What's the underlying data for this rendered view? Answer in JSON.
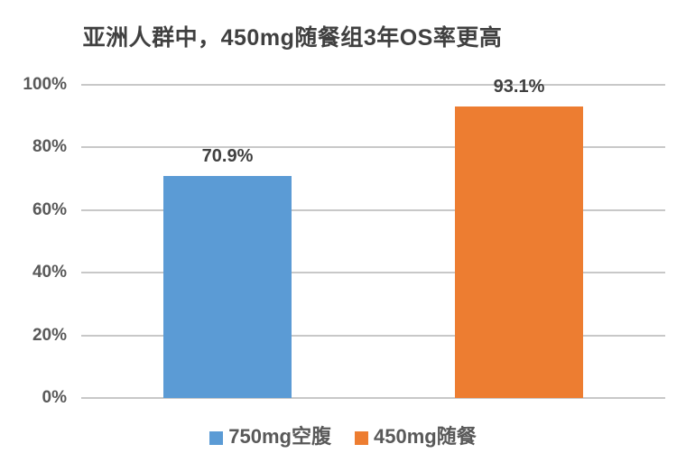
{
  "title": "亚洲人群中，450mg随餐组3年OS率更高",
  "chart_data": {
    "type": "bar",
    "title": "亚洲人群中，450mg随餐组3年OS率更高",
    "categories": [
      "750mg空腹",
      "450mg随餐"
    ],
    "values": [
      70.9,
      93.1
    ],
    "value_labels": [
      "70.9%",
      "93.1%"
    ],
    "xlabel": "",
    "ylabel": "",
    "ylim": [
      0,
      100
    ],
    "yticks": [
      0,
      20,
      40,
      60,
      80,
      100
    ],
    "ytick_labels": [
      "0%",
      "20%",
      "40%",
      "60%",
      "80%",
      "100%"
    ],
    "grid": "horizontal",
    "legend_position": "bottom",
    "legend": [
      {
        "label": "750mg空腹",
        "color": "#5B9BD5"
      },
      {
        "label": "450mg随餐",
        "color": "#ED7D31"
      }
    ]
  },
  "colors": {
    "background": "#FFFFFF",
    "title_text": "#404040",
    "axis_text": "#595959",
    "value_label_text": "#404040",
    "legend_text": "#595959",
    "gridline": "#C8C8C8",
    "bar_blue": "#5B9BD5",
    "bar_orange": "#ED7D31"
  }
}
